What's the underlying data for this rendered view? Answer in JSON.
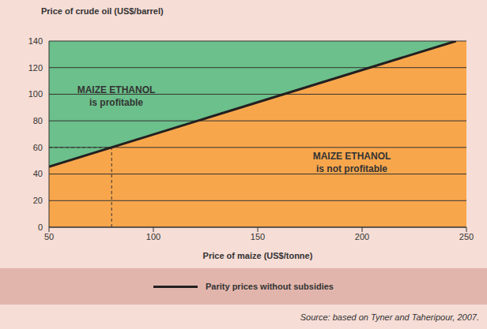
{
  "chart_data": {
    "type": "line",
    "title": "Price of crude oil (US$/barrel)",
    "x_label": "Price of maize (US$/tonne)",
    "x": [
      50,
      245
    ],
    "series": [
      {
        "name": "Parity prices without subsidies",
        "color": "#231f20",
        "values": [
          45.5,
          140
        ]
      }
    ],
    "xlim": [
      50,
      250
    ],
    "ylim": [
      0,
      140
    ],
    "xticks": [
      50,
      100,
      150,
      200,
      250
    ],
    "yticks": [
      0,
      20,
      40,
      60,
      80,
      100,
      120,
      140
    ],
    "grid": true,
    "legend": "bottom",
    "regions": [
      {
        "side": "above",
        "title": "MAIZE ETHANOL",
        "text": "is profitable",
        "color": "#6cc08b"
      },
      {
        "side": "below",
        "title": "MAIZE ETHANOL",
        "text": "is not profitable",
        "color": "#f8a64c"
      }
    ],
    "reference_point": {
      "x": 80,
      "y": 60
    },
    "source": "Source: based on Tyner and Taheripour, 2007."
  }
}
